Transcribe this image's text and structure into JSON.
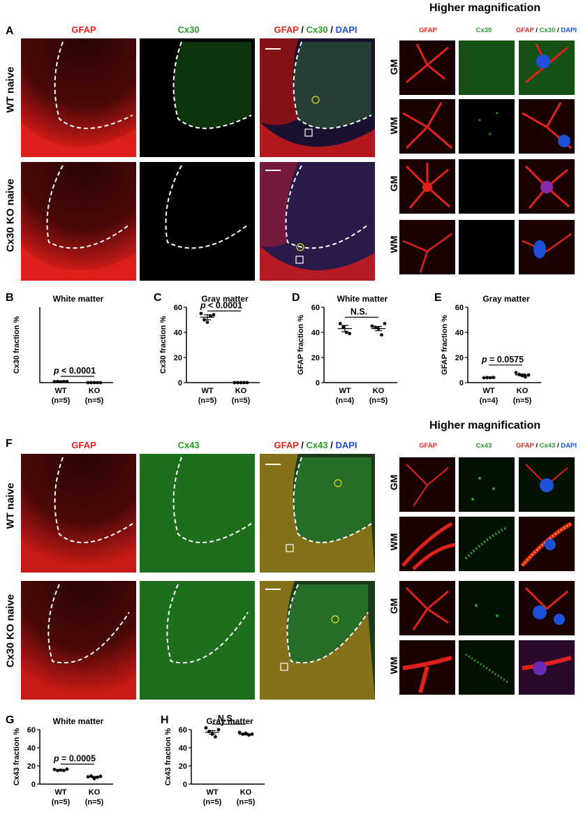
{
  "panels": {
    "A": {
      "letter": "A",
      "higher_mag_title": "Higher magnification",
      "channels": {
        "gfap": "GFAP",
        "cx": "Cx30",
        "dapi": "DAPI",
        "sep": " / "
      },
      "rows": [
        "WT naive",
        "Cx30 KO naive"
      ],
      "sub_rows": [
        "GM",
        "WM",
        "GM",
        "WM"
      ]
    },
    "F": {
      "letter": "F",
      "higher_mag_title": "Higher magnification",
      "channels": {
        "gfap": "GFAP",
        "cx": "Cx43",
        "dapi": "DAPI",
        "sep": " / "
      },
      "rows": [
        "WT naive",
        "Cx30 KO naive"
      ],
      "sub_rows": [
        "GM",
        "WM",
        "GM",
        "WM"
      ]
    }
  },
  "colors": {
    "gfap": "#e8241f",
    "cx": "#2a9c2a",
    "dapi": "#1d4fd8"
  },
  "chart_data": [
    {
      "panel": "B",
      "type": "scatter",
      "title": "White matter",
      "ylabel": "Cx30 fraction %",
      "ylim": [
        0,
        60
      ],
      "yticks": [
        0,
        20,
        40,
        60
      ],
      "show_axis_ticks": false,
      "categories": [
        "WT",
        "KO"
      ],
      "n_labels": [
        "(n=5)",
        "(n=5)"
      ],
      "series": [
        {
          "values": [
            [
              0.8,
              0.9,
              0.7,
              0.9,
              0.8
            ],
            [
              0,
              0,
              0,
              0,
              0
            ]
          ]
        }
      ],
      "means": [
        0.8,
        0
      ],
      "sem": [
        0.1,
        0
      ],
      "annotation": {
        "text_prefix": "p",
        "text": " < 0.0001",
        "y": 5
      }
    },
    {
      "panel": "C",
      "type": "scatter",
      "title": "Gray matter",
      "ylabel": "Cx30 fraction %",
      "ylim": [
        0,
        60
      ],
      "yticks": [
        0,
        20,
        40,
        60
      ],
      "categories": [
        "WT",
        "KO"
      ],
      "n_labels": [
        "(n=5)",
        "(n=5)"
      ],
      "series": [
        {
          "values": [
            [
              55,
              50,
              48,
              53,
              54
            ],
            [
              0,
              0,
              0,
              0,
              0
            ]
          ]
        }
      ],
      "means": [
        52,
        0
      ],
      "sem": [
        2,
        0
      ],
      "annotation": {
        "text_prefix": "p",
        "text": " < 0.0001",
        "y": 57
      }
    },
    {
      "panel": "D",
      "type": "scatter",
      "title": "White matter",
      "ylabel": "GFAP fraction %",
      "ylim": [
        0,
        60
      ],
      "yticks": [
        0,
        20,
        40,
        60
      ],
      "categories": [
        "WT",
        "KO"
      ],
      "n_labels": [
        "(n=4)",
        "(n=5)"
      ],
      "series": [
        {
          "values": [
            [
              47,
              44,
              40,
              39
            ],
            [
              45,
              44,
              43,
              38,
              47
            ]
          ]
        }
      ],
      "means": [
        43,
        43
      ],
      "sem": [
        2.5,
        1.7
      ],
      "annotation": {
        "text_prefix": "",
        "text": "N.S.",
        "y": 52
      }
    },
    {
      "panel": "E",
      "type": "scatter",
      "title": "Gray matter",
      "ylabel": "GFAP fraction %",
      "ylim": [
        0,
        60
      ],
      "yticks": [
        0,
        20,
        40,
        60
      ],
      "categories": [
        "WT",
        "KO"
      ],
      "n_labels": [
        "(n=4)",
        "(n=5)"
      ],
      "series": [
        {
          "values": [
            [
              3.8,
              4.0,
              3.9,
              4.1
            ],
            [
              8.0,
              6.5,
              5.5,
              4.5,
              6.0
            ]
          ]
        }
      ],
      "means": [
        4,
        6.2
      ],
      "sem": [
        0.1,
        0.7
      ],
      "annotation": {
        "text_prefix": "p",
        "text": " = 0.0575",
        "y": 14
      }
    },
    {
      "panel": "G",
      "type": "scatter",
      "title": "White matter",
      "ylabel": "Cx43  fraction %",
      "ylim": [
        0,
        60
      ],
      "yticks": [
        0,
        20,
        40,
        60
      ],
      "categories": [
        "WT",
        "KO"
      ],
      "n_labels": [
        "(n=5)",
        "(n=5)"
      ],
      "series": [
        {
          "values": [
            [
              16,
              15,
              15.5,
              15,
              16.5
            ],
            [
              8,
              9,
              6,
              7.5,
              8.5
            ]
          ]
        }
      ],
      "means": [
        15.5,
        7.8
      ],
      "sem": [
        0.3,
        0.6
      ],
      "annotation": {
        "text_prefix": "p",
        "text": " = 0.0005",
        "y": 22
      }
    },
    {
      "panel": "H",
      "type": "scatter",
      "title": "Gray matter",
      "ylabel": "Cx43  fraction %",
      "ylim": [
        0,
        60
      ],
      "yticks": [
        0,
        20,
        40,
        60
      ],
      "categories": [
        "WT",
        "KO"
      ],
      "n_labels": [
        "(n=5)",
        "(n=5)"
      ],
      "series": [
        {
          "values": [
            [
              62,
              58,
              55,
              52,
              60
            ],
            [
              57,
              55,
              56,
              54,
              55
            ]
          ]
        }
      ],
      "means": [
        57,
        55
      ],
      "sem": [
        2,
        0.8
      ],
      "annotation": {
        "text_prefix": "",
        "text": "N.S.",
        "y": 66
      }
    }
  ]
}
